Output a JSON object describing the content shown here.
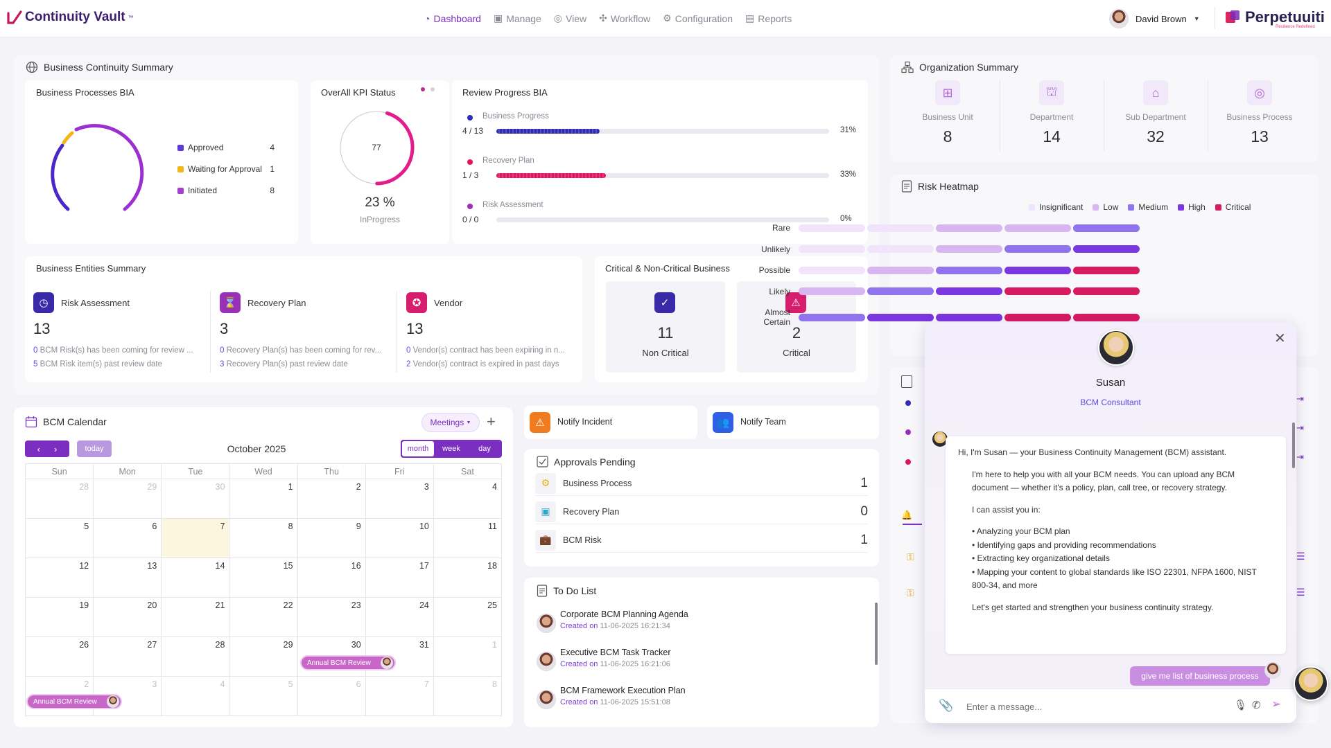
{
  "app": {
    "logo": "Continuity Vault",
    "logo_tm": "™",
    "brand": "Perpetuuiti",
    "brand_tag": "Resilience Redefined"
  },
  "nav": [
    {
      "label": "Dashboard",
      "icon": "dashboard-icon",
      "active": true
    },
    {
      "label": "Manage",
      "icon": "manage-icon"
    },
    {
      "label": "View",
      "icon": "view-icon"
    },
    {
      "label": "Workflow",
      "icon": "workflow-icon"
    },
    {
      "label": "Configuration",
      "icon": "gear-icon"
    },
    {
      "label": "Reports",
      "icon": "reports-icon"
    }
  ],
  "user": {
    "name": "David Brown"
  },
  "bcs": {
    "title": "Business Continuity Summary",
    "bia": {
      "title": "Business Processes BIA",
      "legend": [
        {
          "label": "Approved",
          "value": "4",
          "color": "#5c3bd6"
        },
        {
          "label": "Waiting for Approval",
          "value": "1",
          "color": "#f2b619"
        },
        {
          "label": "Initiated",
          "value": "8",
          "color": "#a23fcf"
        }
      ]
    },
    "kpi": {
      "title": "OverAll KPI Status",
      "center": "77",
      "percent": "23 %",
      "status": "InProgress",
      "fraction": 0.23
    },
    "review": {
      "title": "Review Progress BIA",
      "items": [
        {
          "label": "Business Progress",
          "count": "4 / 13",
          "pct": "31%",
          "fraction": 0.31,
          "color": "#2e2bb5",
          "dot": "#2e2bb5"
        },
        {
          "label": "Recovery Plan",
          "count": "1 / 3",
          "pct": "33%",
          "fraction": 0.33,
          "color": "#e3145f",
          "dot": "#e3145f"
        },
        {
          "label": "Risk Assessment",
          "count": "0 / 0",
          "pct": "0%",
          "fraction": 0,
          "color": "#9b2fbf",
          "dot": "#9b2fbf"
        }
      ]
    },
    "entities": {
      "title": "Business Entities Summary",
      "items": [
        {
          "label": "Risk Assessment",
          "count": "13",
          "n1": "0",
          "l1": "BCM Risk(s) has been coming for review ...",
          "n2": "5",
          "l2": "BCM Risk item(s) past review date",
          "color": "#3b2aa8"
        },
        {
          "label": "Recovery Plan",
          "count": "3",
          "n1": "0",
          "l1": "Recovery Plan(s) has been coming for rev...",
          "n2": "3",
          "l2": "Recovery Plan(s) past review date",
          "color": "#9a2fb8"
        },
        {
          "label": "Vendor",
          "count": "13",
          "n1": "0",
          "l1": "Vendor(s) contract has been expiring in n...",
          "n2": "2",
          "l2": "Vendor(s) contract is expired in past days",
          "color": "#d61d6e"
        }
      ]
    },
    "critical": {
      "title": "Critical & Non-Critical Business",
      "non_critical_count": "11",
      "non_critical_label": "Non Critical",
      "critical_count": "2",
      "critical_label": "Critical"
    }
  },
  "org": {
    "title": "Organization Summary",
    "items": [
      {
        "label": "Business Unit",
        "value": "8"
      },
      {
        "label": "Department",
        "value": "14"
      },
      {
        "label": "Sub Department",
        "value": "32"
      },
      {
        "label": "Business Process",
        "value": "13"
      }
    ]
  },
  "heatmap": {
    "title": "Risk Heatmap",
    "legend": [
      {
        "label": "Insignificant",
        "color": "#efe4fb"
      },
      {
        "label": "Low",
        "color": "#d7b6f2"
      },
      {
        "label": "Medium",
        "color": "#8f74ee"
      },
      {
        "label": "High",
        "color": "#7b37e0"
      },
      {
        "label": "Critical",
        "color": "#d81b60"
      }
    ],
    "rows": [
      {
        "label": "Rare",
        "cells": [
          0,
          0,
          1,
          1,
          2
        ]
      },
      {
        "label": "Unlikely",
        "cells": [
          0,
          0,
          1,
          2,
          3
        ]
      },
      {
        "label": "Possible",
        "cells": [
          0,
          1,
          2,
          3,
          4
        ]
      },
      {
        "label": "Likely",
        "cells": [
          1,
          2,
          3,
          4,
          4
        ]
      },
      {
        "label": "Almost Certain",
        "cells": [
          2,
          3,
          3,
          4,
          4
        ]
      }
    ]
  },
  "calendar": {
    "title": "BCM Calendar",
    "filter": "Meetings",
    "today": "today",
    "month_label": "October 2025",
    "views": [
      "month",
      "week",
      "day"
    ],
    "days": [
      "Sun",
      "Mon",
      "Tue",
      "Wed",
      "Thu",
      "Fri",
      "Sat"
    ],
    "weeks": [
      [
        "28",
        "29",
        "30",
        "1",
        "2",
        "3",
        "4"
      ],
      [
        "5",
        "6",
        "7",
        "8",
        "9",
        "10",
        "11"
      ],
      [
        "12",
        "13",
        "14",
        "15",
        "16",
        "17",
        "18"
      ],
      [
        "19",
        "20",
        "21",
        "22",
        "23",
        "24",
        "25"
      ],
      [
        "26",
        "27",
        "28",
        "29",
        "30",
        "31",
        "1"
      ],
      [
        "2",
        "3",
        "4",
        "5",
        "6",
        "7",
        "8"
      ]
    ],
    "event": "Annual BCM Review"
  },
  "actions": {
    "notify_incident": "Notify Incident",
    "notify_team": "Notify Team"
  },
  "approvals": {
    "title": "Approvals Pending",
    "items": [
      {
        "label": "Business Process",
        "value": "1"
      },
      {
        "label": "Recovery Plan",
        "value": "0"
      },
      {
        "label": "BCM Risk",
        "value": "1"
      }
    ]
  },
  "todo": {
    "title": "To Do List",
    "created": "Created on",
    "items": [
      {
        "title": "Corporate BCM Planning Agenda",
        "date": "11-06-2025 16:21:34"
      },
      {
        "title": "Executive BCM Task Tracker",
        "date": "11-06-2025 16:21:06"
      },
      {
        "title": "BCM Framework Execution Plan",
        "date": "11-06-2025 15:51:08"
      }
    ]
  },
  "chat": {
    "name": "Susan",
    "role": "BCM Consultant",
    "intro": "Hi, I'm Susan — your Business Continuity Management (BCM) assistant.",
    "p1": "I'm here to help you with all your BCM needs. You can upload any BCM document — whether it's a policy, plan, call tree, or recovery strategy.",
    "p2": "I can assist you in:",
    "bullets": [
      "• Analyzing your BCM plan",
      "• Identifying gaps and providing recommendations",
      "• Extracting key organizational details",
      "• Mapping your content to global standards like ISO 22301, NFPA 1600, NIST 800-34, and more"
    ],
    "p3": "Let's get started and strengthen your business continuity strategy.",
    "user_msg": "give me list of business process",
    "placeholder": "Enter a message..."
  }
}
